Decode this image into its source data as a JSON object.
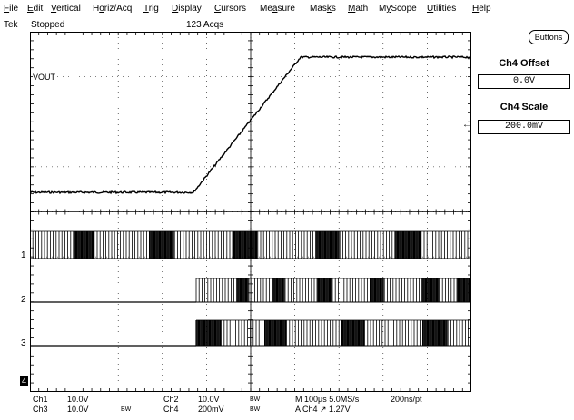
{
  "menu": {
    "items": [
      {
        "label": "File",
        "u": "F"
      },
      {
        "label": "Edit",
        "u": "E"
      },
      {
        "label": "Vertical",
        "u": "V"
      },
      {
        "label": "Horiz/Acq",
        "u": "o"
      },
      {
        "label": "Trig",
        "u": "T"
      },
      {
        "label": "Display",
        "u": "D"
      },
      {
        "label": "Cursors",
        "u": "C"
      },
      {
        "label": "Measure",
        "u": "a"
      },
      {
        "label": "Masks",
        "u": "k"
      },
      {
        "label": "Math",
        "u": "M"
      },
      {
        "label": "MyScope",
        "u": "y"
      },
      {
        "label": "Utilities",
        "u": "U"
      },
      {
        "label": "Help",
        "u": "H"
      }
    ]
  },
  "status": {
    "brand": "Tek",
    "run_state": "Stopped",
    "acqs": "123 Acqs"
  },
  "side_panel": {
    "buttons_label": "Buttons",
    "offset_label": "Ch4 Offset",
    "offset_value": "0.0V",
    "scale_label": "Ch4 Scale",
    "scale_value": "200.0mV"
  },
  "waveform": {
    "label": "VOUT",
    "ch_markers": [
      "1",
      "2",
      "3",
      "4"
    ]
  },
  "readouts": {
    "ch1_name": "Ch1",
    "ch1_scale": "10.0V",
    "ch3_name": "Ch3",
    "ch3_scale": "10.0V",
    "ch3_bw": "BW",
    "ch2_name": "Ch2",
    "ch2_scale": "10.0V",
    "ch2_bw": "BW",
    "ch4_name": "Ch4",
    "ch4_scale": "200mV",
    "ch4_bw": "BW",
    "timebase": "M 100µs 5.0MS/s",
    "resolution": "200ns/pt",
    "trigger": "A  Ch4  ↗  1.27V"
  },
  "colors": {
    "trace": "#000000",
    "grid": "#000000",
    "background": "#ffffff"
  }
}
